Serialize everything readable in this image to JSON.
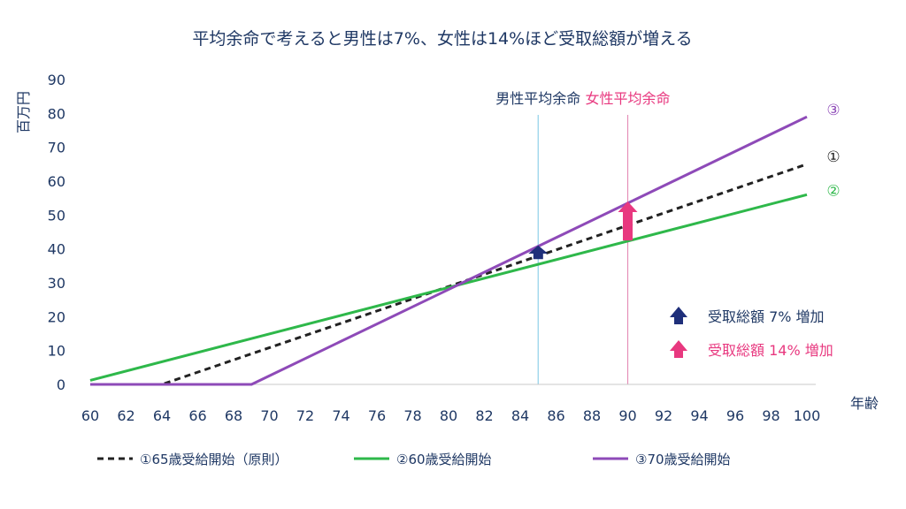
{
  "chart_data": {
    "type": "line",
    "title": "平均余命で考えると男性は7%、女性は14%ほど受取総額が増える",
    "ylabel": "百万円",
    "xlabel": "年齢",
    "xlim": [
      60,
      100
    ],
    "ylim": [
      0,
      90
    ],
    "x_ticks": [
      "60",
      "62",
      "64",
      "66",
      "68",
      "70",
      "72",
      "74",
      "76",
      "78",
      "80",
      "82",
      "84",
      "86",
      "88",
      "90",
      "92",
      "94",
      "96",
      "98",
      "100"
    ],
    "y_ticks": [
      "0",
      "10",
      "20",
      "30",
      "40",
      "50",
      "60",
      "70",
      "80",
      "90"
    ],
    "series": [
      {
        "name": "①65歳受給開始（原則）",
        "end_label": "①",
        "color": "#222222",
        "dash": true,
        "points": [
          [
            60,
            0
          ],
          [
            64,
            0
          ],
          [
            100,
            65
          ]
        ]
      },
      {
        "name": "②60歳受給開始",
        "end_label": "②",
        "color": "#2eb84a",
        "dash": false,
        "points": [
          [
            60,
            1.2
          ],
          [
            100,
            56
          ]
        ]
      },
      {
        "name": "③70歳受給開始",
        "end_label": "③",
        "color": "#8e4ab8",
        "dash": false,
        "points": [
          [
            60,
            0
          ],
          [
            69,
            0
          ],
          [
            100,
            79
          ]
        ]
      }
    ],
    "reference_lines": [
      {
        "x": 85,
        "label": "男性平均余命",
        "line_color": "#8fd0e8",
        "text_color": "#1f3864"
      },
      {
        "x": 90,
        "label": "女性平均余命",
        "line_color": "#e58fb8",
        "text_color": "#e8387f"
      }
    ],
    "arrows": [
      {
        "x": 85,
        "y_from": 37,
        "y_to": 41,
        "color": "#1f2f7a"
      },
      {
        "x": 90,
        "y_from": 42.5,
        "y_to": 54,
        "color": "#e8387f"
      }
    ],
    "notes": [
      {
        "label": "受取総額 7% 増加",
        "color": "#1f2f7a",
        "text_color": "#1f3864"
      },
      {
        "label": "受取総額 14% 増加",
        "color": "#e8387f",
        "text_color": "#e8387f"
      }
    ],
    "grid": false,
    "legend_position": "bottom"
  }
}
